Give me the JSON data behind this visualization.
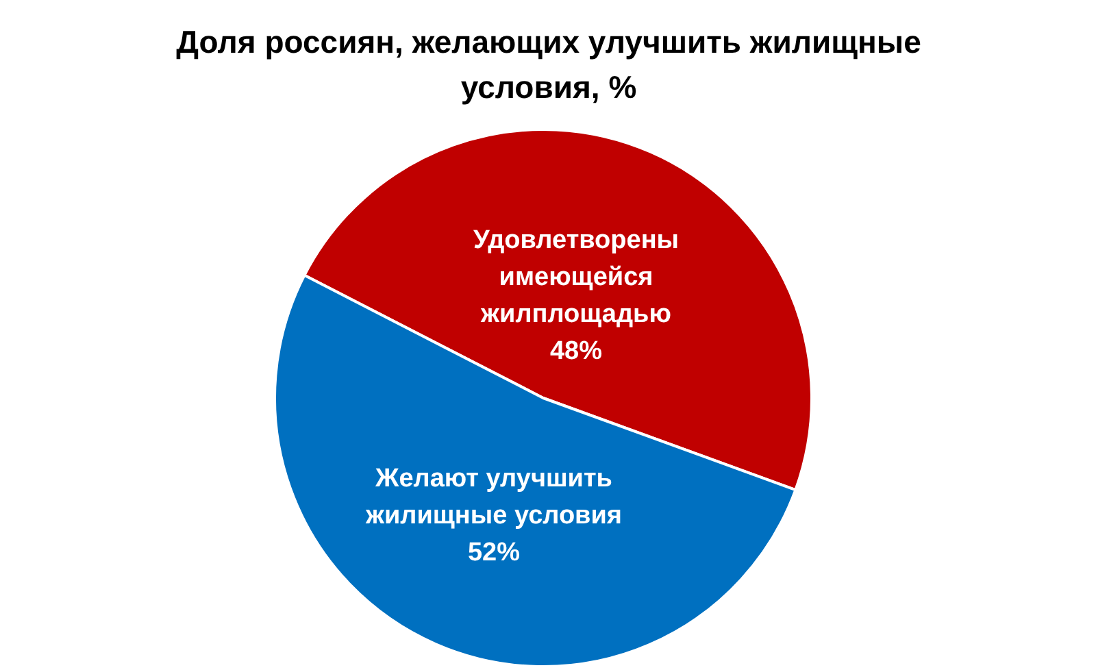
{
  "chart_data": {
    "type": "pie",
    "title": "Доля россиян, желающих улучшить жилищные условия, %",
    "categories": [
      "Удовлетворены имеющейся жилплощадью",
      "Желают улучшить жилищные условия"
    ],
    "values": [
      48,
      52
    ],
    "colors": [
      "#c00000",
      "#0070c0"
    ],
    "value_labels": [
      "48%",
      "52%"
    ]
  }
}
